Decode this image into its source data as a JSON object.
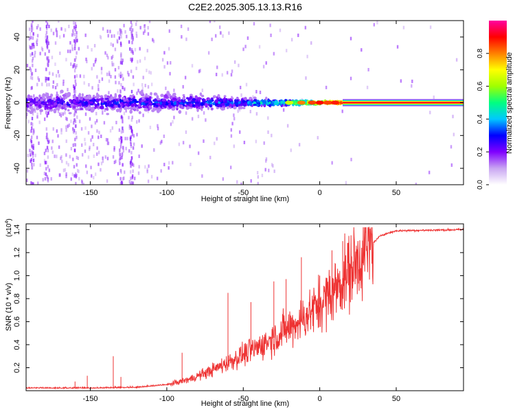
{
  "figure_title": "C2E2.2025.305.13.13.R16",
  "chart_data": [
    {
      "type": "heatmap",
      "title": "C2E2.2025.305.13.13.R16",
      "xlabel": "Height of straight line (km)",
      "ylabel": "Frequency (Hz)",
      "xlim": [
        -192,
        94
      ],
      "ylim": [
        -50,
        50
      ],
      "x_ticks": [
        -150,
        -100,
        -50,
        0,
        50
      ],
      "x_tick_labels": [
        "-150",
        "-100",
        "-50",
        "0",
        "50"
      ],
      "y_ticks": [
        -40,
        -20,
        0,
        20,
        40
      ],
      "y_tick_labels": [
        "-40",
        "-20",
        "0",
        "20",
        "40"
      ],
      "colorbar": {
        "label": "Normalized spectral amplitude",
        "range": [
          0,
          1
        ],
        "ticks": [
          0.0,
          0.2,
          0.4,
          0.6,
          0.8
        ],
        "tick_labels": [
          "0.0",
          "0.2",
          "0.4",
          "0.6",
          "0.8"
        ],
        "colormap": [
          "#ffffff",
          "#c9a6f2",
          "#8000ff",
          "#0000ff",
          "#00c8ff",
          "#00ff80",
          "#a0ff00",
          "#ffff00",
          "#ff8000",
          "#ff0000",
          "#ff00a0"
        ]
      },
      "ridge": {
        "center_frequency_hz": 0,
        "description_points": [
          {
            "x": -190,
            "spread_hz": 8,
            "amplitude": 0.25
          },
          {
            "x": -100,
            "spread_hz": 7,
            "amplitude": 0.3
          },
          {
            "x": -50,
            "spread_hz": 4,
            "amplitude": 0.35
          },
          {
            "x": -25,
            "spread_hz": 2,
            "amplitude": 0.5
          },
          {
            "x": 0,
            "spread_hz": 1,
            "amplitude": 0.75
          },
          {
            "x": 15,
            "spread_hz": 1,
            "amplitude": 0.9
          },
          {
            "x": 94,
            "spread_hz": 1,
            "amplitude": 0.92
          }
        ]
      }
    },
    {
      "type": "line",
      "xlabel": "Height of straight line (km)",
      "ylabel": "SNR (10 * v/v)",
      "y_multiplier_label": "(x10",
      "y_multiplier_exp": "4",
      "y_multiplier_close": ")",
      "xlim": [
        -192,
        94
      ],
      "ylim": [
        0,
        1.45
      ],
      "x_ticks": [
        -150,
        -100,
        -50,
        0,
        50
      ],
      "x_tick_labels": [
        "-150",
        "-100",
        "-50",
        "0",
        "50"
      ],
      "y_ticks": [
        0.2,
        0.4,
        0.6,
        0.8,
        1.0,
        1.2,
        1.4
      ],
      "y_tick_labels": [
        "0.2",
        "0.4",
        "0.6",
        "0.8",
        "1.0",
        "1.2",
        "1.4"
      ],
      "series": [
        {
          "name": "SNR",
          "color": "#ee3333",
          "trend": [
            {
              "x": -192,
              "y": 0.02
            },
            {
              "x": -150,
              "y": 0.02
            },
            {
              "x": -120,
              "y": 0.025
            },
            {
              "x": -100,
              "y": 0.05
            },
            {
              "x": -85,
              "y": 0.1
            },
            {
              "x": -70,
              "y": 0.18
            },
            {
              "x": -55,
              "y": 0.28
            },
            {
              "x": -40,
              "y": 0.38
            },
            {
              "x": -25,
              "y": 0.5
            },
            {
              "x": -10,
              "y": 0.64
            },
            {
              "x": 0,
              "y": 0.75
            },
            {
              "x": 10,
              "y": 0.88
            },
            {
              "x": 20,
              "y": 1.05
            },
            {
              "x": 30,
              "y": 1.22
            },
            {
              "x": 40,
              "y": 1.35
            },
            {
              "x": 50,
              "y": 1.39
            },
            {
              "x": 94,
              "y": 1.4
            }
          ],
          "spikes": [
            {
              "x": -160,
              "y": 0.08
            },
            {
              "x": -152,
              "y": 0.13
            },
            {
              "x": -135,
              "y": 0.3
            },
            {
              "x": -130,
              "y": 0.12
            },
            {
              "x": -90,
              "y": 0.33
            },
            {
              "x": -60,
              "y": 0.85
            },
            {
              "x": -45,
              "y": 0.77
            },
            {
              "x": -30,
              "y": 0.95
            },
            {
              "x": -22,
              "y": 0.97
            },
            {
              "x": -12,
              "y": 1.16
            },
            {
              "x": 0,
              "y": 1.0
            },
            {
              "x": 8,
              "y": 1.22
            },
            {
              "x": 15,
              "y": 1.3
            }
          ]
        }
      ]
    }
  ]
}
